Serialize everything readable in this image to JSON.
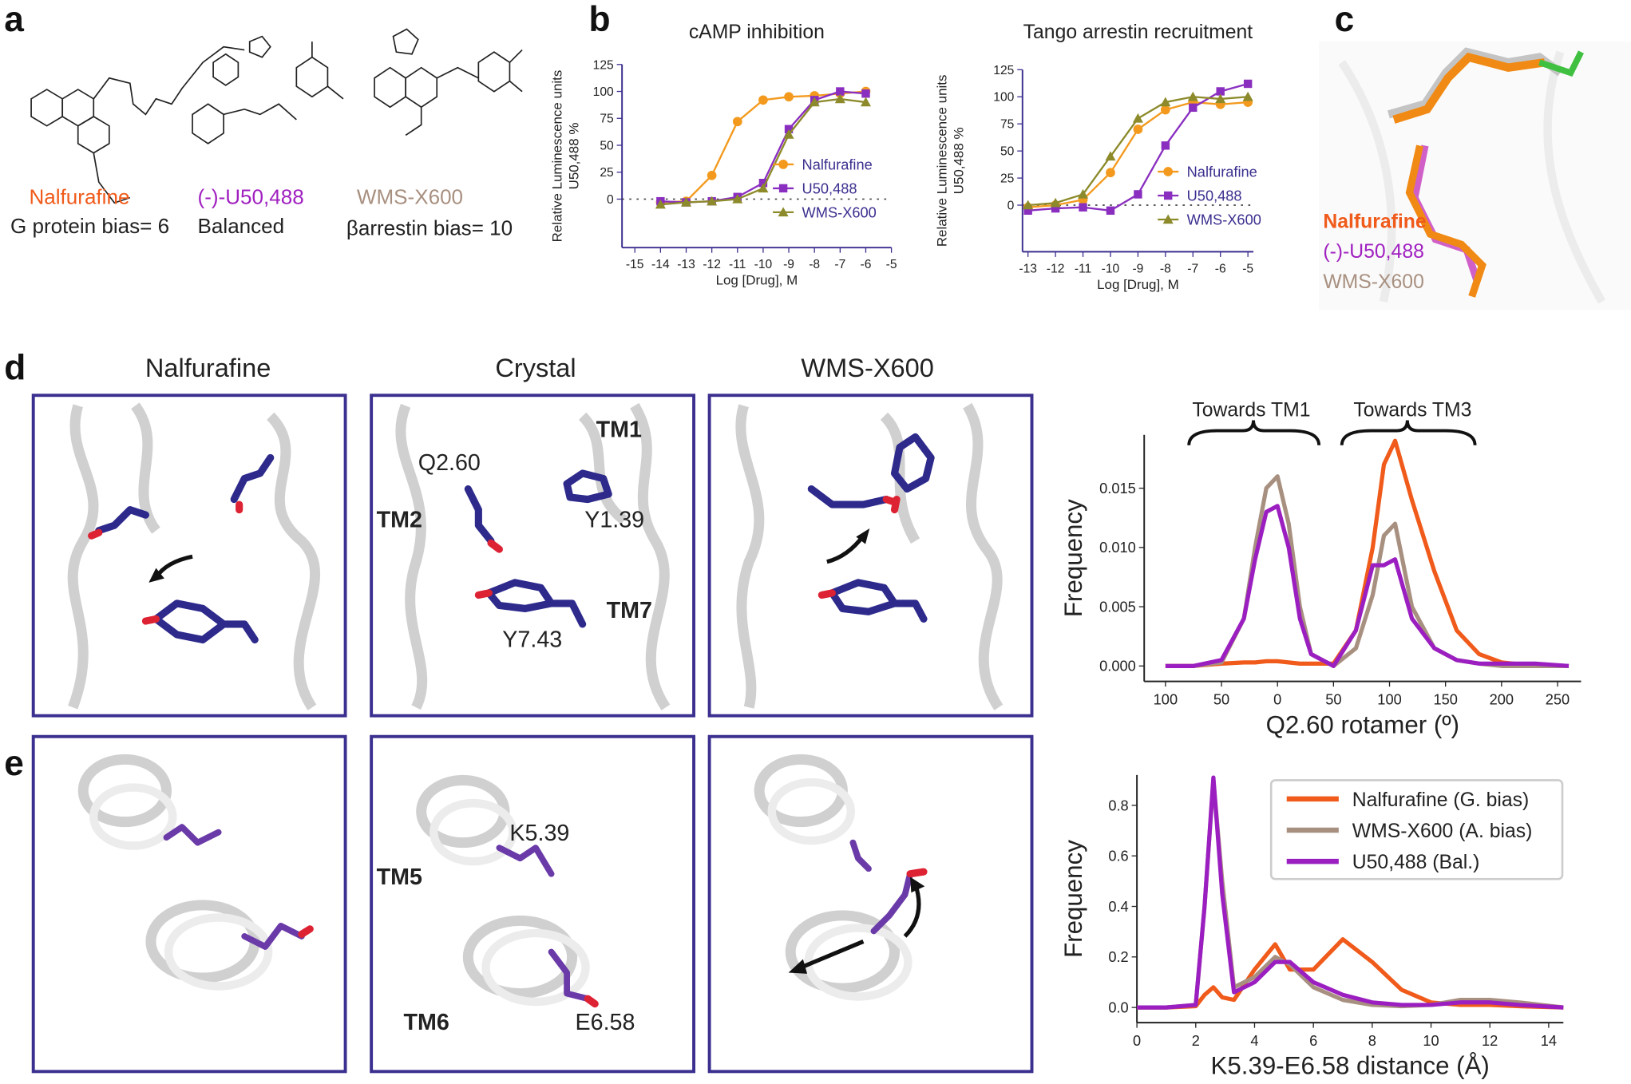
{
  "panel_labels": [
    "a",
    "b",
    "c",
    "d",
    "e"
  ],
  "compounds": [
    {
      "name": "Nalfurafine",
      "note": "G protein bias= 6"
    },
    {
      "name": "(-)-U50,488",
      "note": "Balanced"
    },
    {
      "name": "WMS-X600",
      "note": "βarrestin bias= 10"
    }
  ],
  "panel_c_labels": [
    "Nalfurafine",
    "(-)-U50,488",
    "WMS-X600"
  ],
  "columns": [
    "Nalfurafine",
    "Crystal",
    "WMS-X600"
  ],
  "residues": {
    "q260": "Q2.60",
    "tm1": "TM1",
    "tm2": "TM2",
    "y139": "Y1.39",
    "y743": "Y7.43",
    "tm7": "TM7",
    "k539": "K5.39",
    "tm5": "TM5",
    "tm6": "TM6",
    "e658": "E6.58"
  },
  "annotations": [
    "Towards TM1",
    "Towards TM3"
  ],
  "chart_data": [
    {
      "type": "line",
      "title": "cAMP inhibition",
      "y_label": [
        "Relative Luminescence units",
        "U50,488 %"
      ],
      "x_label": "Log [Drug], M",
      "x": [
        -14,
        -13,
        -12,
        -11,
        -10,
        -9,
        -8,
        -7,
        -6
      ],
      "xlim": [
        -15.5,
        -5
      ],
      "xticks": [
        -15,
        -14,
        -13,
        -12,
        -11,
        -10,
        -9,
        -8,
        -7,
        -6,
        -5
      ],
      "ylim": [
        -45,
        125
      ],
      "yticks": [
        0,
        25,
        50,
        75,
        100,
        125
      ],
      "zero_line": true,
      "series": [
        {
          "name": "Nalfurafine",
          "color": "#f39a1e",
          "marker": "circle",
          "values": [
            -3,
            -2,
            22,
            72,
            92,
            95,
            96,
            98,
            100
          ]
        },
        {
          "name": "U50,488",
          "color": "#8a2ec0",
          "marker": "square",
          "values": [
            -2,
            -3,
            -2,
            2,
            15,
            65,
            92,
            100,
            98
          ]
        },
        {
          "name": "WMS-X600",
          "color": "#8c8a2a",
          "marker": "triangle",
          "values": [
            -5,
            -3,
            -2,
            0,
            10,
            60,
            90,
            93,
            90
          ]
        }
      ]
    },
    {
      "type": "line",
      "title": "Tango arrestin recruitment",
      "y_label": [
        "Relative Luminescence units",
        "U50,488 %"
      ],
      "x_label": "Log [Drug], M",
      "x": [
        -13,
        -12,
        -11,
        -10,
        -9,
        -8,
        -7,
        -6,
        -5
      ],
      "xlim": [
        -13.2,
        -4.8
      ],
      "xticks": [
        -13,
        -12,
        -11,
        -10,
        -9,
        -8,
        -7,
        -6,
        -5
      ],
      "ylim": [
        -43,
        125
      ],
      "yticks": [
        0,
        25,
        50,
        75,
        100,
        125
      ],
      "zero_line": true,
      "series": [
        {
          "name": "Nalfurafine",
          "color": "#f39a1e",
          "marker": "circle",
          "values": [
            -2,
            0,
            5,
            30,
            70,
            88,
            95,
            93,
            95
          ]
        },
        {
          "name": "U50,488",
          "color": "#8a2ec0",
          "marker": "square",
          "values": [
            -5,
            -3,
            -2,
            -5,
            10,
            55,
            90,
            105,
            112
          ]
        },
        {
          "name": "WMS-X600",
          "color": "#8c8a2a",
          "marker": "triangle",
          "values": [
            0,
            2,
            10,
            45,
            80,
            95,
            100,
            98,
            100
          ]
        }
      ]
    },
    {
      "type": "line",
      "y_label": "Frequency",
      "x_label": "Q2.60 rotamer (º)",
      "x": [
        -100,
        -75,
        -50,
        -30,
        -20,
        -10,
        0,
        10,
        20,
        30,
        50,
        70,
        85,
        95,
        105,
        120,
        140,
        160,
        180,
        200,
        230,
        260
      ],
      "xlim": [
        -119,
        271
      ],
      "xticks": [
        {
          "value": -100,
          "label": "100"
        },
        {
          "value": -50,
          "label": "50"
        },
        0,
        50,
        100,
        150,
        200,
        250
      ],
      "ylim": [
        -0.0013,
        0.0195
      ],
      "yticks": [
        {
          "value": 0,
          "label": "0.000"
        },
        {
          "value": 0.005,
          "label": "0.005"
        },
        {
          "value": 0.01,
          "label": "0.010"
        },
        {
          "value": 0.015,
          "label": "0.015"
        }
      ],
      "series": [
        {
          "color": "#f05a1a",
          "values": [
            0,
            0,
            0.0002,
            0.0003,
            0.0003,
            0.0004,
            0.0004,
            0.0003,
            0.0002,
            0.0002,
            0.0002,
            0.003,
            0.01,
            0.017,
            0.019,
            0.014,
            0.008,
            0.003,
            0.001,
            0.0003,
            0,
            0
          ]
        },
        {
          "color": "#a89080",
          "values": [
            0,
            0,
            0.0003,
            0.004,
            0.01,
            0.015,
            0.016,
            0.012,
            0.005,
            0.001,
            0,
            0.0015,
            0.006,
            0.011,
            0.012,
            0.005,
            0.0015,
            0.0005,
            0.0002,
            0,
            0,
            0
          ]
        },
        {
          "color": "#9b1fc0",
          "values": [
            0,
            0,
            0.0005,
            0.004,
            0.009,
            0.013,
            0.0135,
            0.01,
            0.004,
            0.001,
            0,
            0.003,
            0.0085,
            0.0085,
            0.009,
            0.004,
            0.0015,
            0.0005,
            0.0002,
            0.0002,
            0.0002,
            0
          ]
        }
      ]
    },
    {
      "type": "line",
      "y_label": "Frequency",
      "x_label": "K5.39-E6.58 distance (Å)",
      "x": [
        0,
        1,
        2,
        2.3,
        2.6,
        2.9,
        3.3,
        4,
        4.7,
        5.2,
        6,
        7,
        8,
        9,
        10,
        11,
        12,
        13,
        14.5
      ],
      "xlim": [
        0,
        14.5
      ],
      "xticks": [
        0,
        2,
        4,
        6,
        8,
        10,
        12,
        14
      ],
      "ylim": [
        -0.06,
        0.92
      ],
      "yticks": [
        {
          "value": 0,
          "label": "0.0"
        },
        0.2,
        0.4,
        0.6,
        0.8
      ],
      "legend": "upper right",
      "series": [
        {
          "name": "Nalfurafine (G. bias)",
          "color": "#f05a1a",
          "values": [
            0,
            0,
            0.005,
            0.05,
            0.08,
            0.04,
            0.03,
            0.15,
            0.25,
            0.15,
            0.15,
            0.27,
            0.18,
            0.07,
            0.02,
            0.01,
            0.01,
            0.005,
            0
          ]
        },
        {
          "name": "WMS-X600 (A. bias)",
          "color": "#a89080",
          "values": [
            0,
            0,
            0.01,
            0.4,
            0.9,
            0.5,
            0.08,
            0.12,
            0.2,
            0.17,
            0.08,
            0.03,
            0.01,
            0.005,
            0.01,
            0.03,
            0.03,
            0.02,
            0
          ]
        },
        {
          "name": "U50,488 (Bal.)",
          "color": "#9b1fc0",
          "values": [
            0,
            0,
            0.01,
            0.4,
            0.91,
            0.45,
            0.06,
            0.1,
            0.18,
            0.18,
            0.1,
            0.05,
            0.02,
            0.01,
            0.01,
            0.02,
            0.02,
            0.01,
            0
          ]
        }
      ]
    }
  ]
}
